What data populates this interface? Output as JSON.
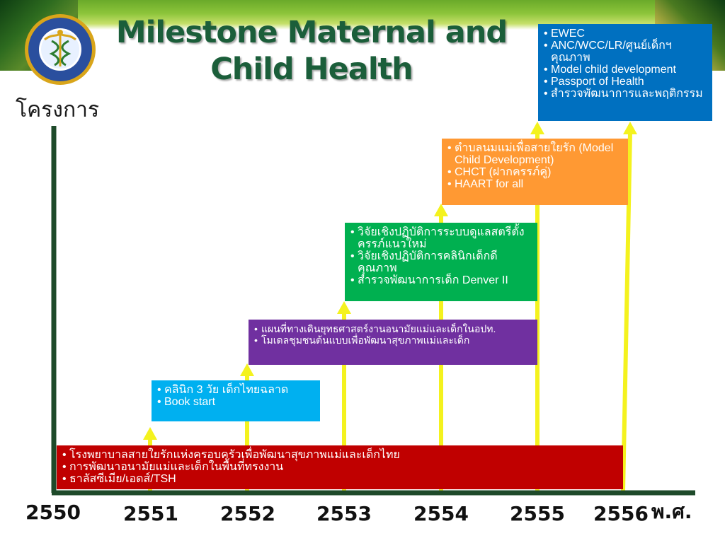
{
  "title": "Milestone Maternal and Child Health",
  "y_axis_label": "โครงการ",
  "x_axis_label": "พ.ศ.",
  "years": [
    "2550",
    "2551",
    "2552",
    "2553",
    "2554",
    "2555",
    "2556"
  ],
  "colors": {
    "axis": "#1e4a2a",
    "arrow": "#f4f21e",
    "red": "#c00000",
    "blue": "#00b0f0",
    "purple": "#7030a0",
    "green": "#00b050",
    "orange": "#ff9933",
    "navy": "#0070c0",
    "title": "#1b5e3a"
  },
  "milestones": [
    {
      "year": "2550",
      "items": [
        "โรงพยาบาลสายใยรักแห่งครอบครัวเพื่อพัฒนาสุขภาพแม่และเด็กไทย",
        "การพัฒนาอนามัยแม่และเด็กในพื้นที่ทรงงาน",
        "ธาลัสซีเมีย/เอดส์/TSH"
      ]
    },
    {
      "year": "2551",
      "items": [
        "คลินิก 3 วัย เด็กไทยฉลาด",
        "Book start"
      ]
    },
    {
      "year": "2552",
      "items": [
        "แผนที่ทางเดินยุทธศาสตร์งานอนามัยแม่และเด็กในอปท.",
        "โมเดลชุมชนต้นแบบเพื่อพัฒนาสุขภาพแม่และเด็ก"
      ]
    },
    {
      "year": "2553",
      "items": [
        "วิจัยเชิงปฏิบัติการระบบดูแลสตรีตั้งครรภ์แนวใหม่",
        "วิจัยเชิงปฏิบัติการคลินิกเด็กดีคุณภาพ",
        "สำรวจพัฒนาการเด็ก Denver II"
      ]
    },
    {
      "year": "2554",
      "items": [
        "ตำบลนมแม่เพื่อสายใยรัก (Model Child Development)",
        "CHCT (ฝากครรภ์คู่)",
        "HAART for all"
      ]
    },
    {
      "year": "2555",
      "items": [
        "EWEC",
        "ANC/WCC/LR/ศูนย์เด็กฯ คุณภาพ",
        "Model child development",
        "Passport of Health",
        "สำรวจพัฒนาการและพฤติกรรม"
      ]
    }
  ]
}
